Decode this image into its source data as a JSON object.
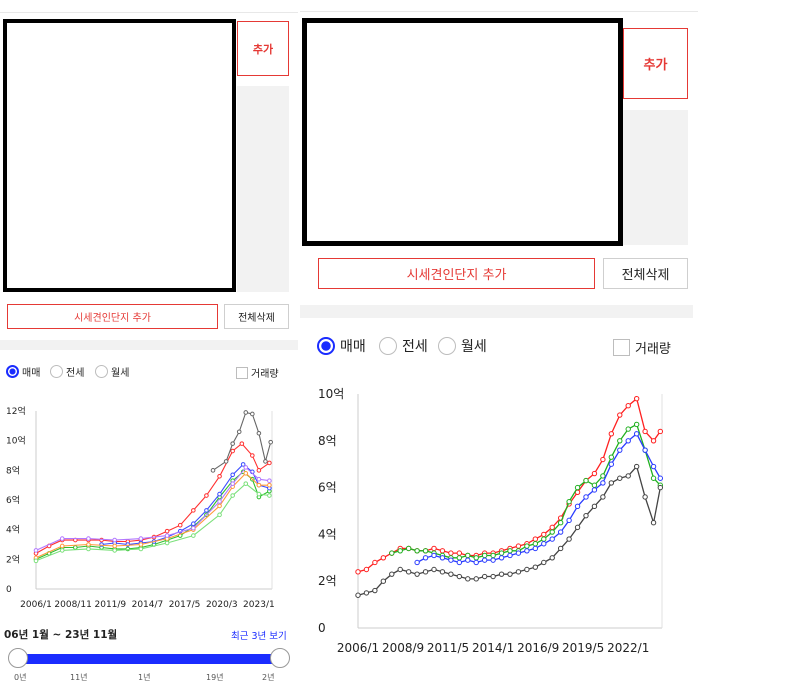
{
  "buttons": {
    "add": "추가",
    "add_compare": "시세견인단지 추가",
    "delete_all": "전체삭제"
  },
  "trade_types": [
    {
      "label": "매매",
      "selected": true
    },
    {
      "label": "전세",
      "selected": false
    },
    {
      "label": "월세",
      "selected": false
    }
  ],
  "volume_label": "거래량",
  "range": {
    "label": "06년 1월 ~ 23년 11월",
    "recent_link": "최근 3년 보기",
    "slider_ticks": [
      "0년",
      "11년",
      "1년",
      "19년",
      "2년"
    ]
  },
  "colors": {
    "accent_red": "#e53935",
    "accent_blue": "#1a2cff"
  },
  "chart_data": [
    {
      "type": "line",
      "y_ticks": [
        "0",
        "2억",
        "4억",
        "6억",
        "8억",
        "10억",
        "12억"
      ],
      "x_ticks": [
        "2006/1",
        "2008/11",
        "2011/9",
        "2014/7",
        "2017/5",
        "2020/3",
        "2023/1"
      ],
      "x_tick_positions": [
        2006.0,
        2008.83,
        2011.67,
        2014.5,
        2017.33,
        2020.17,
        2023.0
      ],
      "xlim": [
        2006.0,
        2024.0
      ],
      "ylim": [
        0,
        12
      ],
      "series": [
        {
          "color": "#ff3030",
          "x": [
            2006,
            2007,
            2008,
            2009,
            2010,
            2011,
            2012,
            2013,
            2014,
            2015,
            2016,
            2017,
            2018,
            2019,
            2020,
            2021,
            2021.7,
            2022.5,
            2023,
            2023.8
          ],
          "y": [
            2.4,
            2.9,
            3.3,
            3.3,
            3.3,
            3.3,
            3.2,
            3.2,
            3.3,
            3.5,
            3.9,
            4.3,
            5.3,
            6.3,
            7.6,
            9.3,
            9.8,
            9.0,
            8.0,
            8.5
          ]
        },
        {
          "color": "#2ec02e",
          "x": [
            2006,
            2007,
            2008,
            2009,
            2010,
            2011,
            2012,
            2013,
            2014,
            2015,
            2016,
            2017,
            2018,
            2019,
            2020,
            2021,
            2021.8,
            2022.5,
            2023,
            2023.8
          ],
          "y": [
            2.0,
            2.4,
            2.8,
            2.8,
            2.9,
            2.8,
            2.7,
            2.7,
            2.8,
            3.0,
            3.3,
            3.6,
            4.2,
            5.0,
            6.2,
            7.3,
            7.9,
            7.4,
            6.2,
            6.6
          ]
        },
        {
          "color": "#3a4cff",
          "x": [
            2011,
            2012,
            2013,
            2014,
            2015,
            2016,
            2017,
            2018,
            2019,
            2020,
            2021,
            2021.8,
            2022.5,
            2023,
            2023.8
          ],
          "y": [
            3.0,
            3.1,
            3.0,
            3.1,
            3.2,
            3.5,
            3.9,
            4.4,
            5.3,
            6.4,
            7.7,
            8.4,
            7.9,
            7.0,
            6.8
          ]
        },
        {
          "color": "#ff9a3c",
          "x": [
            2006,
            2008,
            2010,
            2012,
            2014,
            2016,
            2018,
            2020,
            2021,
            2022,
            2023,
            2023.8
          ],
          "y": [
            2.1,
            2.9,
            3.0,
            2.9,
            3.0,
            3.4,
            4.0,
            5.6,
            6.9,
            7.8,
            7.0,
            7.0
          ]
        },
        {
          "color": "#b278ff",
          "x": [
            2006,
            2008,
            2010,
            2012,
            2014,
            2016,
            2018,
            2020,
            2021,
            2022,
            2023,
            2023.8
          ],
          "y": [
            2.6,
            3.4,
            3.4,
            3.3,
            3.4,
            3.6,
            4.1,
            5.9,
            7.1,
            8.2,
            7.4,
            7.3
          ]
        },
        {
          "color": "#7be07b",
          "x": [
            2006,
            2008,
            2010,
            2012,
            2014,
            2016,
            2018,
            2020,
            2021,
            2022,
            2023,
            2023.8
          ],
          "y": [
            1.9,
            2.6,
            2.7,
            2.6,
            2.7,
            3.1,
            3.6,
            5.0,
            6.3,
            7.1,
            6.4,
            6.3
          ]
        },
        {
          "color": "#666666",
          "x": [
            2019.5,
            2020.5,
            2021,
            2021.5,
            2022,
            2022.5,
            2023,
            2023.5,
            2023.9
          ],
          "y": [
            8.0,
            8.6,
            9.8,
            10.6,
            11.9,
            11.8,
            10.5,
            8.6,
            9.9
          ]
        }
      ]
    },
    {
      "type": "line",
      "y_ticks": [
        "0",
        "2억",
        "4억",
        "6억",
        "8억",
        "10억"
      ],
      "x_ticks": [
        "2006/1",
        "2008/9",
        "2011/5",
        "2014/1",
        "2016/9",
        "2019/5",
        "2022/1"
      ],
      "x_tick_positions": [
        2006.0,
        2008.67,
        2011.33,
        2014.0,
        2016.67,
        2019.33,
        2022.0
      ],
      "xlim": [
        2006.0,
        2024.0
      ],
      "ylim": [
        0,
        10
      ],
      "series": [
        {
          "color": "#ff2020",
          "x": [
            2006,
            2006.5,
            2007,
            2007.5,
            2008,
            2008.5,
            2009,
            2009.5,
            2010,
            2010.5,
            2011,
            2011.5,
            2012,
            2012.5,
            2013,
            2013.5,
            2014,
            2014.5,
            2015,
            2015.5,
            2016,
            2016.5,
            2017,
            2017.5,
            2018,
            2018.5,
            2019,
            2019.5,
            2020,
            2020.5,
            2021,
            2021.5,
            2022,
            2022.5,
            2023,
            2023.5,
            2023.9
          ],
          "y": [
            2.4,
            2.5,
            2.8,
            3.0,
            3.2,
            3.4,
            3.4,
            3.3,
            3.3,
            3.4,
            3.3,
            3.2,
            3.2,
            3.1,
            3.1,
            3.2,
            3.2,
            3.3,
            3.4,
            3.5,
            3.6,
            3.8,
            4.0,
            4.3,
            4.7,
            5.3,
            5.8,
            6.3,
            6.6,
            7.2,
            8.3,
            9.1,
            9.5,
            9.8,
            8.4,
            8.0,
            8.4
          ]
        },
        {
          "color": "#20b020",
          "x": [
            2008,
            2008.5,
            2009,
            2009.5,
            2010,
            2010.5,
            2011,
            2011.5,
            2012,
            2012.5,
            2013,
            2013.5,
            2014,
            2014.5,
            2015,
            2015.5,
            2016,
            2016.5,
            2017,
            2017.5,
            2018,
            2018.5,
            2019,
            2019.5,
            2020,
            2020.5,
            2021,
            2021.5,
            2022,
            2022.5,
            2023,
            2023.5,
            2023.9
          ],
          "y": [
            3.2,
            3.3,
            3.4,
            3.3,
            3.3,
            3.2,
            3.1,
            3.0,
            3.0,
            3.1,
            3.0,
            3.1,
            3.1,
            3.2,
            3.3,
            3.3,
            3.5,
            3.6,
            3.8,
            4.1,
            4.5,
            5.4,
            6.0,
            6.3,
            6.1,
            6.5,
            7.3,
            8.0,
            8.5,
            8.7,
            7.6,
            6.4,
            6.1
          ]
        },
        {
          "color": "#2a3cff",
          "x": [
            2009.5,
            2010,
            2010.5,
            2011,
            2011.5,
            2012,
            2012.5,
            2013,
            2013.5,
            2014,
            2014.5,
            2015,
            2015.5,
            2016,
            2016.5,
            2017,
            2017.5,
            2018,
            2018.5,
            2019,
            2019.5,
            2020,
            2020.5,
            2021,
            2021.5,
            2022,
            2022.5,
            2023,
            2023.5,
            2023.9
          ],
          "y": [
            2.8,
            3.0,
            3.1,
            3.0,
            2.9,
            2.8,
            2.9,
            2.8,
            2.9,
            2.9,
            3.0,
            3.1,
            3.2,
            3.3,
            3.4,
            3.6,
            3.8,
            4.1,
            4.6,
            5.2,
            5.6,
            5.9,
            6.2,
            7.0,
            7.6,
            8.0,
            8.3,
            7.6,
            6.9,
            6.4
          ]
        },
        {
          "color": "#444444",
          "x": [
            2006,
            2006.5,
            2007,
            2007.5,
            2008,
            2008.5,
            2009,
            2009.5,
            2010,
            2010.5,
            2011,
            2011.5,
            2012,
            2012.5,
            2013,
            2013.5,
            2014,
            2014.5,
            2015,
            2015.5,
            2016,
            2016.5,
            2017,
            2017.5,
            2018,
            2018.5,
            2019,
            2019.5,
            2020,
            2020.5,
            2021,
            2021.5,
            2022,
            2022.5,
            2023,
            2023.5,
            2023.9
          ],
          "y": [
            1.4,
            1.5,
            1.6,
            2.0,
            2.3,
            2.5,
            2.4,
            2.3,
            2.4,
            2.5,
            2.4,
            2.3,
            2.2,
            2.1,
            2.1,
            2.2,
            2.2,
            2.3,
            2.3,
            2.4,
            2.5,
            2.6,
            2.8,
            3.0,
            3.4,
            3.8,
            4.3,
            4.8,
            5.2,
            5.6,
            6.2,
            6.4,
            6.5,
            6.9,
            5.6,
            4.5,
            6.0
          ]
        }
      ]
    }
  ]
}
